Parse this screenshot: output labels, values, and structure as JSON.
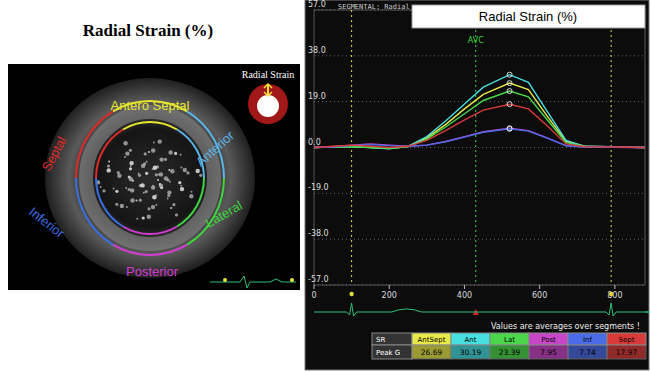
{
  "image": {
    "title": "Radial Strain (%)",
    "inset_label": "Radial Strain",
    "segment_labels": [
      {
        "text": "Antero Septal",
        "color": "#e6e62e"
      },
      {
        "text": "Septal",
        "color": "#e02a2a"
      },
      {
        "text": "Anterior",
        "color": "#5ab4e6"
      },
      {
        "text": "Inferior",
        "color": "#3a6ee0"
      },
      {
        "text": "Lateral",
        "color": "#3ed43e"
      },
      {
        "text": "Posterior",
        "color": "#d23cd2"
      }
    ]
  },
  "chart_data": {
    "type": "line",
    "title": "Radial Strain (%)",
    "subtitle": "SEGMENTAL: Radial",
    "note": "Values are averages over segments !",
    "table_header": "SR",
    "table_row_label": "Peak G",
    "x": [
      0,
      50,
      100,
      150,
      200,
      250,
      300,
      350,
      400,
      450,
      520,
      570,
      620,
      670,
      720,
      800,
      880
    ],
    "series": [
      {
        "name": "AntSept",
        "color": "#e8e84a",
        "peak": "26.69",
        "values": [
          0,
          0.2,
          0.4,
          0,
          -0.4,
          0.4,
          4,
          9.5,
          16,
          22,
          26.69,
          24,
          13,
          2.5,
          0.5,
          0.2,
          0
        ]
      },
      {
        "name": "Ant",
        "color": "#46dede",
        "peak": "30.19",
        "values": [
          0,
          0.3,
          0.5,
          0,
          -0.5,
          0.5,
          4.5,
          11,
          18,
          25,
          30.19,
          27,
          15,
          3,
          0.5,
          0.3,
          0
        ]
      },
      {
        "name": "Lat",
        "color": "#4ad84a",
        "peak": "23.39",
        "values": [
          0,
          0.2,
          0.3,
          0,
          -0.3,
          0.3,
          3.5,
          8.5,
          14,
          19.5,
          23.39,
          21,
          11.5,
          2,
          0.4,
          0.2,
          0
        ]
      },
      {
        "name": "Post",
        "color": "#c846c8",
        "peak": "7.95",
        "values": [
          0,
          0.3,
          1,
          1.5,
          1,
          0.5,
          1,
          2.5,
          4.5,
          6.5,
          7.95,
          7,
          4,
          0.8,
          0.2,
          0.1,
          0
        ]
      },
      {
        "name": "Inf",
        "color": "#4a6ae6",
        "peak": "7.74",
        "values": [
          0,
          0.3,
          0.8,
          1.2,
          0.8,
          0.4,
          1,
          2.4,
          4.3,
          6.3,
          7.74,
          6.8,
          3.9,
          0.7,
          0.2,
          0.1,
          0
        ]
      },
      {
        "name": "Sept",
        "color": "#d83a3a",
        "peak": "17.97",
        "values": [
          0,
          0.5,
          1,
          0.5,
          0,
          0.5,
          3,
          7,
          11.5,
          15.5,
          17.97,
          16,
          9,
          1.5,
          0.3,
          0.2,
          0
        ]
      }
    ],
    "annotations": [
      {
        "text": "AVC",
        "x": 430
      }
    ],
    "event_lines": [
      100,
      790
    ],
    "xlim": [
      0,
      880
    ],
    "xticks": [
      0,
      200,
      400,
      600,
      800
    ],
    "ylim": [
      -57,
      57
    ],
    "yticks": [
      {
        "value": -57,
        "label": "-57.0"
      },
      {
        "value": -38,
        "label": "-38.0"
      },
      {
        "value": -19,
        "label": "-19.0"
      },
      {
        "value": 0,
        "label": "0.0"
      },
      {
        "value": 19,
        "label": "19.0"
      },
      {
        "value": 38,
        "label": "38.0"
      },
      {
        "value": 57,
        "label": "57.0"
      }
    ],
    "grid": true
  }
}
